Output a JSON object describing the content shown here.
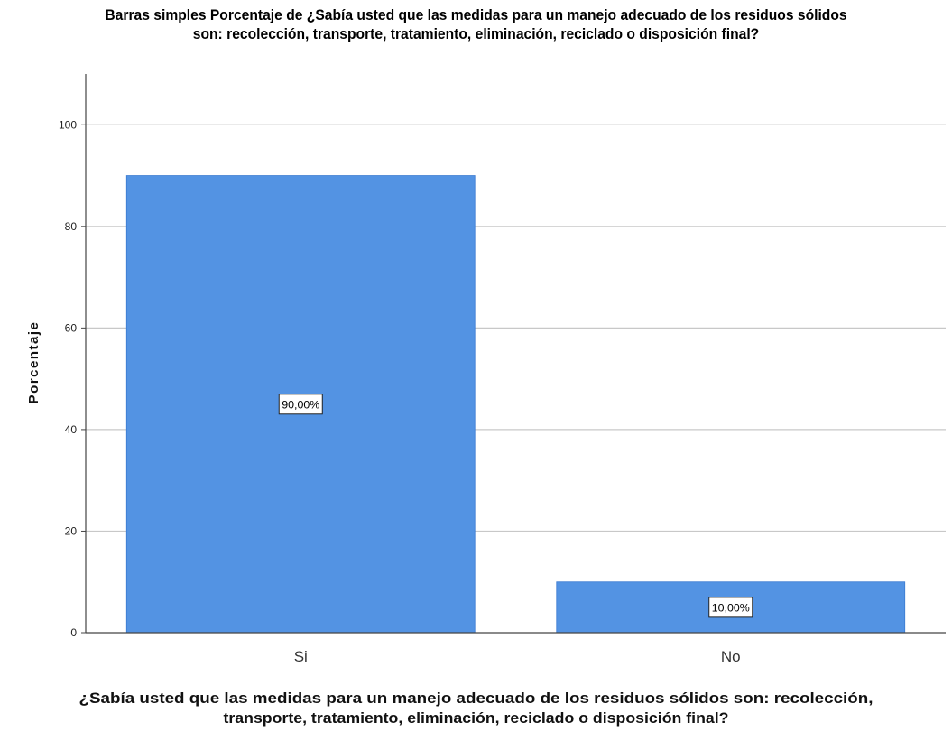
{
  "chart_data": {
    "type": "bar",
    "title_lines": [
      "Barras simples Porcentaje de ¿Sabía usted que las medidas para un manejo adecuado de los residuos sólidos",
      "son: recolección, transporte, tratamiento, eliminación, reciclado o disposición final?"
    ],
    "categories": [
      "Si",
      "No"
    ],
    "values": [
      90,
      10
    ],
    "data_labels": [
      "90,00%",
      "10,00%"
    ],
    "ylabel": "Porcentaje",
    "xlabel_lines": [
      "¿Sabía usted que las medidas para un manejo adecuado de los residuos sólidos son: recolección,",
      "transporte, tratamiento, eliminación, reciclado o disposición final?"
    ],
    "ylim": [
      0,
      110
    ],
    "yticks": [
      0,
      20,
      40,
      60,
      80,
      100
    ],
    "grid": true,
    "legend": "none",
    "bar_color": "#5393E3"
  }
}
